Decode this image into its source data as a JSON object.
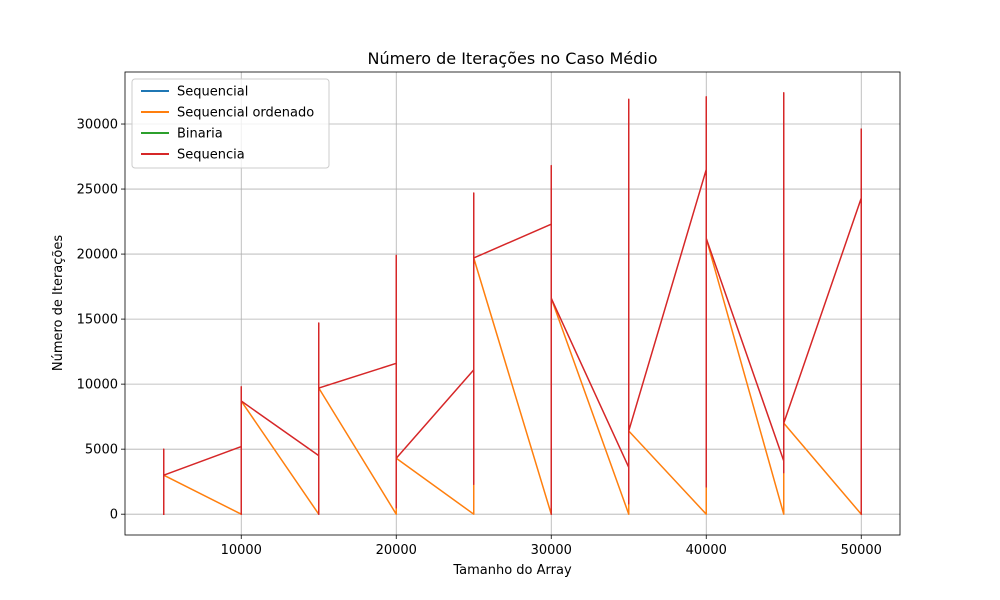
{
  "chart_data": {
    "type": "line",
    "title": "Número de Iterações no Caso Médio",
    "xlabel": "Tamanho do Array",
    "ylabel": "Número de Iterações",
    "xlim": [
      2500,
      52500
    ],
    "ylim": [
      -1600,
      34000
    ],
    "xticks": [
      10000,
      20000,
      30000,
      40000,
      50000
    ],
    "yticks": [
      0,
      5000,
      10000,
      15000,
      20000,
      25000,
      30000
    ],
    "grid": true,
    "legend_position": "upper-left",
    "series": [
      {
        "name": "Sequencial",
        "color": "#1f77b4",
        "points": []
      },
      {
        "name": "Sequencial ordenado",
        "color": "#ff7f0e",
        "points": [
          [
            5000,
            0
          ],
          [
            5000,
            3000
          ],
          [
            10000,
            0
          ],
          [
            10000,
            8700
          ],
          [
            15000,
            0
          ],
          [
            15000,
            9700
          ],
          [
            20000,
            0
          ],
          [
            20000,
            4300
          ],
          [
            25000,
            0
          ],
          [
            25000,
            19700
          ],
          [
            30000,
            0
          ],
          [
            30000,
            16600
          ],
          [
            35000,
            0
          ],
          [
            35000,
            6400
          ],
          [
            40000,
            0
          ],
          [
            40000,
            21200
          ],
          [
            45000,
            0
          ],
          [
            45000,
            7000
          ],
          [
            50000,
            0
          ]
        ]
      },
      {
        "name": "Binaria",
        "color": "#2ca02c",
        "points": []
      },
      {
        "name": "Sequencia",
        "color": "#d62728",
        "points": [
          [
            5000,
            0
          ],
          [
            5000,
            5000
          ],
          [
            5000,
            3000
          ],
          [
            10000,
            5200
          ],
          [
            10000,
            0
          ],
          [
            10000,
            9800
          ],
          [
            10000,
            8700
          ],
          [
            15000,
            4500
          ],
          [
            15000,
            0
          ],
          [
            15000,
            14700
          ],
          [
            15000,
            9700
          ],
          [
            20000,
            11600
          ],
          [
            20000,
            500
          ],
          [
            20000,
            19900
          ],
          [
            20000,
            4300
          ],
          [
            25000,
            11100
          ],
          [
            25000,
            2300
          ],
          [
            25000,
            24700
          ],
          [
            25000,
            19700
          ],
          [
            30000,
            22300
          ],
          [
            30000,
            0
          ],
          [
            30000,
            26800
          ],
          [
            30000,
            16600
          ],
          [
            35000,
            3600
          ],
          [
            35000,
            800
          ],
          [
            35000,
            31900
          ],
          [
            35000,
            6400
          ],
          [
            40000,
            26500
          ],
          [
            40000,
            2100
          ],
          [
            40000,
            32100
          ],
          [
            40000,
            21200
          ],
          [
            45000,
            4100
          ],
          [
            45000,
            3200
          ],
          [
            45000,
            32400
          ],
          [
            45000,
            7000
          ],
          [
            50000,
            24300
          ],
          [
            50000,
            0
          ],
          [
            50000,
            29600
          ]
        ]
      }
    ]
  }
}
